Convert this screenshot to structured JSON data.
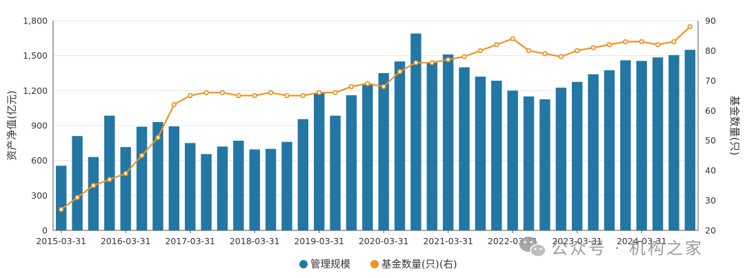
{
  "chart_data": {
    "type": "bar+line",
    "x": [
      "2015-03-31",
      "2015-06-30",
      "2015-09-30",
      "2015-12-31",
      "2016-03-31",
      "2016-06-30",
      "2016-09-30",
      "2016-12-31",
      "2017-03-31",
      "2017-06-30",
      "2017-09-30",
      "2017-12-31",
      "2018-03-31",
      "2018-06-30",
      "2018-09-30",
      "2018-12-31",
      "2019-03-31",
      "2019-06-30",
      "2019-09-30",
      "2019-12-31",
      "2020-03-31",
      "2020-06-30",
      "2020-09-30",
      "2020-12-31",
      "2021-03-31",
      "2021-06-30",
      "2021-09-30",
      "2021-12-31",
      "2022-03-31",
      "2022-06-30",
      "2022-09-30",
      "2022-12-31",
      "2023-03-31",
      "2023-06-30",
      "2023-09-30",
      "2023-12-31",
      "2024-03-31",
      "2024-06-30",
      "2024-09-30",
      "2024-12-31"
    ],
    "x_tick_labels": [
      "2015-03-31",
      "2016-03-31",
      "2017-03-31",
      "2018-03-31",
      "2019-03-31",
      "2020-03-31",
      "2021-03-31",
      "2022-03-31",
      "2023-03-31",
      "2024-03-31"
    ],
    "ylabel": "资产净值(亿元)",
    "y2label": "基金数量(只)",
    "ylim": [
      0,
      1800
    ],
    "yticks": [
      "0",
      "300",
      "600",
      "900",
      "1,200",
      "1,500",
      "1,800"
    ],
    "y2lim": [
      20,
      90
    ],
    "y2ticks": [
      "20",
      "30",
      "40",
      "50",
      "60",
      "70",
      "80",
      "90"
    ],
    "grid": true,
    "legend_position": "bottom-center",
    "series": [
      {
        "name": "管理规模",
        "type": "bar",
        "axis": "left",
        "color": "#2277a5",
        "values": [
          555,
          810,
          630,
          985,
          715,
          890,
          930,
          893,
          750,
          655,
          720,
          770,
          695,
          700,
          760,
          955,
          1180,
          985,
          1160,
          1260,
          1350,
          1450,
          1690,
          1440,
          1510,
          1400,
          1320,
          1285,
          1200,
          1150,
          1125,
          1225,
          1275,
          1340,
          1375,
          1460,
          1455,
          1485,
          1505,
          1550
        ]
      },
      {
        "name": "基金数量(只)(右)",
        "type": "line",
        "axis": "right",
        "color": "#f0921e",
        "values": [
          27,
          31,
          35,
          37,
          39,
          45,
          51,
          62,
          65,
          66,
          66,
          65,
          65,
          66,
          65,
          65,
          66,
          66,
          68,
          69,
          68,
          73,
          76,
          76,
          77,
          78,
          80,
          82,
          84,
          80,
          79,
          78,
          80,
          81,
          82,
          83,
          83,
          82,
          83,
          88
        ]
      }
    ]
  },
  "watermark": {
    "text": "公众号 · 机构之家",
    "icon": "wechat-icon"
  }
}
